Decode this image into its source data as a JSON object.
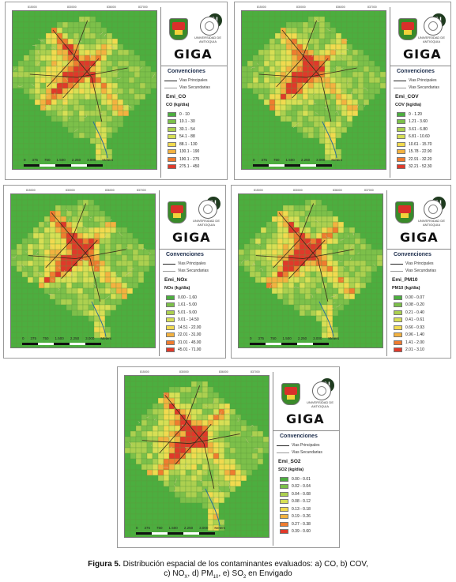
{
  "colors": {
    "map_bg": "#6fb34a",
    "river": "#2b6f9a",
    "roads": "#3a2a1a",
    "urban_lines": "#c9c78a"
  },
  "common": {
    "giga_label": "GIGA",
    "conv_title": "Convenciones",
    "roads_main": "Vias Principales",
    "roads_secondary": "Vias Secundarias",
    "university_label": "UNIVERSIDAD DE ANTIOQUIA",
    "north_symbol": "N",
    "scale_labels": [
      "0",
      "375",
      "750",
      "1.500",
      "2.250",
      "3.000"
    ],
    "scale_unit": "Meters",
    "grid_ticks": [
      "815000",
      "830000",
      "836000",
      "837000"
    ]
  },
  "panels": [
    {
      "id": "co",
      "layer": "Emi_CO",
      "unit": "CO (kg/dia)",
      "classes": [
        {
          "label": "0 - 10",
          "color": "#4cae3f"
        },
        {
          "label": "10.1 - 30",
          "color": "#7cc04a"
        },
        {
          "label": "30.1 - 54",
          "color": "#acd050"
        },
        {
          "label": "54.1 - 88",
          "color": "#d7df55"
        },
        {
          "label": "88.1 - 130",
          "color": "#f1da4f"
        },
        {
          "label": "130.1 - 190",
          "color": "#f3b240"
        },
        {
          "label": "190.1 - 275",
          "color": "#ef7c2f"
        },
        {
          "label": "275.1 - 450",
          "color": "#e0392a"
        }
      ]
    },
    {
      "id": "cov",
      "layer": "Emi_COV",
      "unit": "COV (kg/dia)",
      "classes": [
        {
          "label": "0 - 1.20",
          "color": "#4cae3f"
        },
        {
          "label": "1.21 - 3.60",
          "color": "#7cc04a"
        },
        {
          "label": "3.61 - 6.80",
          "color": "#acd050"
        },
        {
          "label": "6.81 - 10.60",
          "color": "#d7df55"
        },
        {
          "label": "10.61 - 15.70",
          "color": "#f1da4f"
        },
        {
          "label": "15.78 - 22.90",
          "color": "#f3b240"
        },
        {
          "label": "22.91 - 32.20",
          "color": "#ef7c2f"
        },
        {
          "label": "32.21 - 52.30",
          "color": "#e0392a"
        }
      ]
    },
    {
      "id": "nox",
      "layer": "Emi_NOx",
      "unit": "NOx (kg/dia)",
      "classes": [
        {
          "label": "0.00 - 1.60",
          "color": "#4cae3f"
        },
        {
          "label": "1.61 - 5.00",
          "color": "#7cc04a"
        },
        {
          "label": "5.01 - 9.00",
          "color": "#acd050"
        },
        {
          "label": "9.01 - 14.50",
          "color": "#d7df55"
        },
        {
          "label": "14.51 - 22.00",
          "color": "#f1da4f"
        },
        {
          "label": "22.01 - 31.00",
          "color": "#f3b240"
        },
        {
          "label": "31.01 - 45.00",
          "color": "#ef7c2f"
        },
        {
          "label": "45.01 - 71.00",
          "color": "#e0392a"
        }
      ]
    },
    {
      "id": "pm10",
      "layer": "Emi_PM10",
      "unit": "PM10 (kg/dia)",
      "classes": [
        {
          "label": "0.00 - 0.07",
          "color": "#4cae3f"
        },
        {
          "label": "0.08 - 0.20",
          "color": "#7cc04a"
        },
        {
          "label": "0.21 - 0.40",
          "color": "#acd050"
        },
        {
          "label": "0.41 - 0.61",
          "color": "#d7df55"
        },
        {
          "label": "0.66 - 0.93",
          "color": "#f1da4f"
        },
        {
          "label": "0.96 - 1.40",
          "color": "#f3b240"
        },
        {
          "label": "1.41 - 2.00",
          "color": "#ef7c2f"
        },
        {
          "label": "2.01 - 3.10",
          "color": "#e0392a"
        }
      ]
    },
    {
      "id": "so2",
      "layer": "Emi_SO2",
      "unit": "SO2 (kg/dia)",
      "classes": [
        {
          "label": "0.00 - 0.01",
          "color": "#4cae3f"
        },
        {
          "label": "0.02 - 0.04",
          "color": "#7cc04a"
        },
        {
          "label": "0.04 - 0.08",
          "color": "#acd050"
        },
        {
          "label": "0.08 - 0.12",
          "color": "#d7df55"
        },
        {
          "label": "0.13 - 0.18",
          "color": "#f1da4f"
        },
        {
          "label": "0.19 - 0.26",
          "color": "#f3b240"
        },
        {
          "label": "0.27 - 0.38",
          "color": "#ef7c2f"
        },
        {
          "label": "0.39 - 0.60",
          "color": "#e0392a"
        }
      ]
    }
  ],
  "caption": {
    "figure_label": "Figura 5.",
    "line1": "Distribución espacial de los contaminantes evaluados: a) CO, b) COV,",
    "line2_part1": "c) NO",
    "line2_sub1": "X",
    "line2_part2": ", d) PM",
    "line2_sub2": "10",
    "line2_part3": ", e) SO",
    "line2_sub3": "2",
    "line2_part4": " en Envigado"
  }
}
